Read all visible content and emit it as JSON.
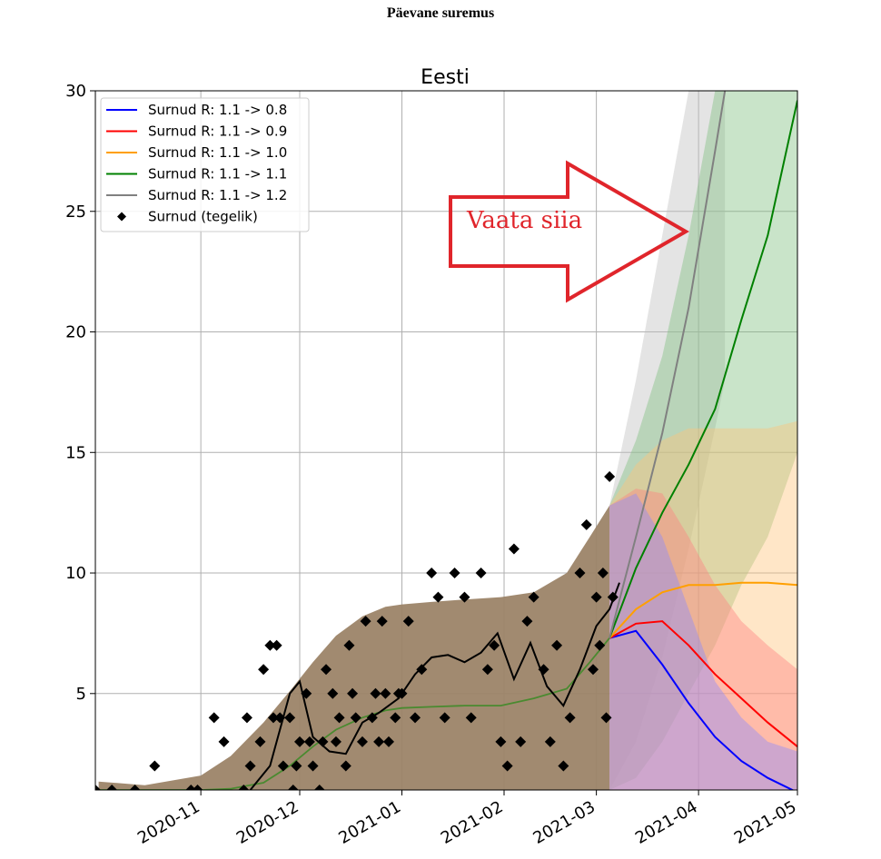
{
  "page": {
    "suptitle": "Päevane suremus"
  },
  "chart_data": {
    "type": "line",
    "title": "Eesti",
    "xlabel": "",
    "ylabel": "",
    "ylim": [
      1,
      30
    ],
    "xlim": [
      "2020-09-30",
      "2021-05-01"
    ],
    "grid": true,
    "legend_position": "top-left",
    "x_ticks": [
      {
        "date": "2020-11-01",
        "label": "2020-11"
      },
      {
        "date": "2020-12-01",
        "label": "2020-12"
      },
      {
        "date": "2021-01-01",
        "label": "2021-01"
      },
      {
        "date": "2021-02-01",
        "label": "2021-02"
      },
      {
        "date": "2021-03-01",
        "label": "2021-03"
      },
      {
        "date": "2021-04-01",
        "label": "2021-04"
      },
      {
        "date": "2021-05-01",
        "label": "2021-05"
      }
    ],
    "y_ticks": [
      5,
      10,
      15,
      20,
      25,
      30
    ],
    "history": {
      "x": [
        "2020-10-01",
        "2020-10-15",
        "2020-11-01",
        "2020-11-10",
        "2020-11-20",
        "2020-11-28",
        "2020-12-05",
        "2020-12-12",
        "2020-12-20",
        "2020-12-27",
        "2021-01-01",
        "2021-01-10",
        "2021-01-20",
        "2021-01-31",
        "2021-02-10",
        "2021-02-20",
        "2021-02-27",
        "2021-03-05"
      ],
      "model_mean": [
        1.0,
        1.0,
        1.0,
        1.05,
        1.3,
        2.0,
        2.8,
        3.5,
        4.0,
        4.3,
        4.4,
        4.45,
        4.5,
        4.5,
        4.8,
        5.2,
        6.3,
        7.3
      ],
      "band_low": [
        1.0,
        1.0,
        1.0,
        1.0,
        1.0,
        1.0,
        1.0,
        1.0,
        1.0,
        1.0,
        1.0,
        1.0,
        1.0,
        1.0,
        1.0,
        1.0,
        1.0,
        1.0
      ],
      "band_high": [
        1.35,
        1.2,
        1.6,
        2.4,
        3.8,
        5.1,
        6.3,
        7.4,
        8.2,
        8.6,
        8.7,
        8.8,
        8.9,
        9.0,
        9.2,
        10.0,
        11.5,
        12.8
      ]
    },
    "smoothed_actual": {
      "x": [
        "2020-11-16",
        "2020-11-22",
        "2020-11-28",
        "2020-12-01",
        "2020-12-05",
        "2020-12-10",
        "2020-12-15",
        "2020-12-20",
        "2020-12-25",
        "2020-12-31",
        "2021-01-05",
        "2021-01-10",
        "2021-01-15",
        "2021-01-20",
        "2021-01-25",
        "2021-01-30",
        "2021-02-04",
        "2021-02-09",
        "2021-02-14",
        "2021-02-19",
        "2021-02-24",
        "2021-03-01",
        "2021-03-05",
        "2021-03-08"
      ],
      "y": [
        1.0,
        2.0,
        5.0,
        5.5,
        3.2,
        2.6,
        2.5,
        3.8,
        4.2,
        4.8,
        5.8,
        6.5,
        6.6,
        6.3,
        6.7,
        7.5,
        5.6,
        7.1,
        5.3,
        4.5,
        6.0,
        7.8,
        8.5,
        9.6
      ]
    },
    "series": [
      {
        "name": "Surnud  R: 1.1 -> 0.8",
        "color": "#0000ff",
        "band_color": "#8a8aff",
        "x": [
          "2021-03-05",
          "2021-03-13",
          "2021-03-21",
          "2021-03-29",
          "2021-04-06",
          "2021-04-14",
          "2021-04-22",
          "2021-05-01"
        ],
        "y": [
          7.3,
          7.6,
          6.2,
          4.6,
          3.2,
          2.2,
          1.5,
          0.9
        ],
        "band_low": [
          1.0,
          1.0,
          1.0,
          1.0,
          1.0,
          1.0,
          1.0,
          1.0
        ],
        "band_high": [
          12.8,
          13.3,
          11.5,
          8.5,
          5.5,
          4.0,
          3.0,
          2.6
        ]
      },
      {
        "name": "Surnud  R: 1.1 -> 0.9",
        "color": "#ff0000",
        "band_color": "#ff8080",
        "x": [
          "2021-03-05",
          "2021-03-13",
          "2021-03-21",
          "2021-03-29",
          "2021-04-06",
          "2021-04-14",
          "2021-04-22",
          "2021-05-01"
        ],
        "y": [
          7.3,
          7.9,
          8.0,
          7.0,
          5.8,
          4.8,
          3.8,
          2.8
        ],
        "band_low": [
          1.0,
          1.0,
          1.0,
          1.0,
          1.0,
          1.0,
          1.0,
          1.0
        ],
        "band_high": [
          12.8,
          13.5,
          13.3,
          11.5,
          9.5,
          8.0,
          7.0,
          6.0
        ]
      },
      {
        "name": "Surnud  R: 1.1 -> 1.0",
        "color": "#ff9f00",
        "band_color": "#ffc37a",
        "x": [
          "2021-03-05",
          "2021-03-13",
          "2021-03-21",
          "2021-03-29",
          "2021-04-06",
          "2021-04-14",
          "2021-04-22",
          "2021-05-01"
        ],
        "y": [
          7.3,
          8.5,
          9.2,
          9.5,
          9.5,
          9.6,
          9.6,
          9.5
        ],
        "band_low": [
          1.0,
          1.0,
          1.0,
          1.0,
          1.0,
          1.0,
          1.0,
          1.0
        ],
        "band_high": [
          12.8,
          14.5,
          15.5,
          16.0,
          16.0,
          16.0,
          16.0,
          16.3
        ]
      },
      {
        "name": "Surnud  R: 1.1 -> 1.1",
        "color": "#008000",
        "band_color": "#7fbf7f",
        "x": [
          "2021-03-05",
          "2021-03-13",
          "2021-03-21",
          "2021-03-29",
          "2021-04-06",
          "2021-04-14",
          "2021-04-22",
          "2021-05-01"
        ],
        "y": [
          7.3,
          10.2,
          12.5,
          14.5,
          16.8,
          20.5,
          24.0,
          29.6
        ],
        "band_low": [
          1.0,
          1.5,
          3.0,
          5.0,
          7.0,
          9.5,
          11.5,
          15.0
        ],
        "band_high": [
          12.8,
          15.5,
          19.0,
          24.0,
          30.0,
          30.0,
          30.0,
          30.0
        ]
      },
      {
        "name": "Surnud  R: 1.1 -> 1.2",
        "color": "#808080",
        "band_color": "#bfbfbf",
        "x": [
          "2021-03-05",
          "2021-03-13",
          "2021-03-21",
          "2021-03-29",
          "2021-04-06",
          "2021-04-09"
        ],
        "y": [
          7.3,
          11.5,
          15.8,
          21.0,
          27.5,
          30.0
        ],
        "band_low": [
          1.0,
          3.0,
          6.5,
          11.0,
          16.0,
          18.0
        ],
        "band_high": [
          12.8,
          18.0,
          24.0,
          30.0,
          30.0,
          30.0
        ]
      }
    ],
    "actual_points": {
      "name": "Surnud (tegelik)",
      "color": "#000000",
      "x": [
        "2020-09-30",
        "2020-10-05",
        "2020-10-12",
        "2020-10-18",
        "2020-10-29",
        "2020-10-31",
        "2020-11-05",
        "2020-11-08",
        "2020-11-14",
        "2020-11-15",
        "2020-11-16",
        "2020-11-19",
        "2020-11-20",
        "2020-11-22",
        "2020-11-23",
        "2020-11-24",
        "2020-11-25",
        "2020-11-26",
        "2020-11-28",
        "2020-11-29",
        "2020-11-30",
        "2020-12-01",
        "2020-12-03",
        "2020-12-04",
        "2020-12-05",
        "2020-12-07",
        "2020-12-08",
        "2020-12-09",
        "2020-12-11",
        "2020-12-12",
        "2020-12-13",
        "2020-12-15",
        "2020-12-16",
        "2020-12-17",
        "2020-12-18",
        "2020-12-20",
        "2020-12-21",
        "2020-12-23",
        "2020-12-24",
        "2020-12-25",
        "2020-12-26",
        "2020-12-27",
        "2020-12-28",
        "2020-12-30",
        "2020-12-31",
        "2021-01-01",
        "2021-01-03",
        "2021-01-05",
        "2021-01-07",
        "2021-01-10",
        "2021-01-12",
        "2021-01-14",
        "2021-01-17",
        "2021-01-20",
        "2021-01-22",
        "2021-01-25",
        "2021-01-27",
        "2021-01-29",
        "2021-01-31",
        "2021-02-02",
        "2021-02-04",
        "2021-02-06",
        "2021-02-08",
        "2021-02-10",
        "2021-02-13",
        "2021-02-15",
        "2021-02-17",
        "2021-02-19",
        "2021-02-21",
        "2021-02-24",
        "2021-02-26",
        "2021-02-28",
        "2021-03-01",
        "2021-03-02",
        "2021-03-03",
        "2021-03-04",
        "2021-03-05",
        "2021-03-06"
      ],
      "y": [
        1,
        1,
        1,
        2,
        1,
        1,
        4,
        3,
        1,
        4,
        2,
        3,
        6,
        7,
        4,
        7,
        4,
        2,
        4,
        1,
        2,
        3,
        5,
        3,
        2,
        1,
        3,
        6,
        5,
        3,
        4,
        2,
        7,
        5,
        4,
        3,
        8,
        4,
        5,
        3,
        8,
        5,
        3,
        4,
        5,
        5,
        8,
        4,
        6,
        10,
        9,
        4,
        10,
        9,
        4,
        10,
        6,
        7,
        3,
        2,
        11,
        3,
        8,
        9,
        6,
        3,
        7,
        2,
        4,
        10,
        12,
        6,
        9,
        7,
        10,
        4,
        14,
        9
      ]
    },
    "annotation": {
      "text": "Vaata siia",
      "color": "#e0252b"
    }
  }
}
